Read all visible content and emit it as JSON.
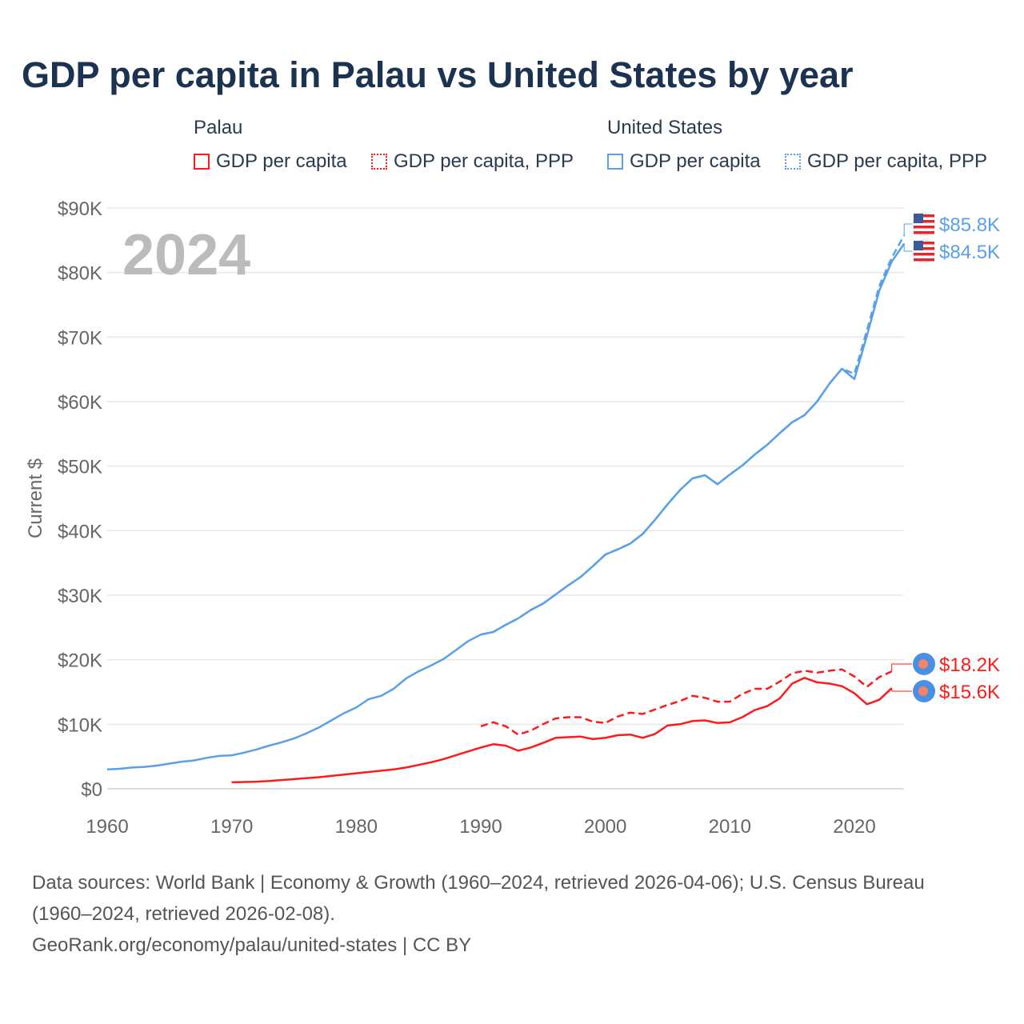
{
  "title": "GDP per capita in Palau vs United States by year",
  "legend": {
    "palau": "Palau",
    "us": "United States",
    "gdp": "GDP per capita",
    "ppp": "GDP per capita, PPP"
  },
  "year_watermark": "2024",
  "sources": {
    "line1": "Data sources: World Bank | Economy & Growth (1960–2024, retrieved 2026-04-06); U.S. Census Bureau",
    "line2": "(1960–2024, retrieved 2026-02-08).",
    "line3": "GeoRank.org/economy/palau/united-states | CC BY"
  },
  "colors": {
    "palau": "#ff1a1a",
    "us": "#5aa0e8"
  },
  "chart_data": {
    "type": "line",
    "title": "GDP per capita in Palau vs United States by year",
    "xlabel": "",
    "ylabel": "Current $",
    "xlim": [
      1960,
      2024
    ],
    "ylim": [
      0,
      90000
    ],
    "x_ticks": [
      "1960",
      "1970",
      "1980",
      "1990",
      "2000",
      "2010",
      "2020"
    ],
    "y_ticks": [
      "$0",
      "$10K",
      "$20K",
      "$30K",
      "$40K",
      "$50K",
      "$60K",
      "$70K",
      "$80K",
      "$90K"
    ],
    "grid": true,
    "series": [
      {
        "name": "United States GDP per capita",
        "color": "#5aa0e8",
        "dash": false,
        "start": 1960,
        "end_label": "$84.5K",
        "values": [
          3.0,
          3.1,
          3.3,
          3.4,
          3.6,
          3.9,
          4.2,
          4.4,
          4.8,
          5.1,
          5.2,
          5.6,
          6.1,
          6.7,
          7.2,
          7.8,
          8.6,
          9.5,
          10.6,
          11.7,
          12.6,
          13.9,
          14.4,
          15.5,
          17.1,
          18.2,
          19.1,
          20.1,
          21.5,
          22.9,
          23.9,
          24.3,
          25.4,
          26.4,
          27.7,
          28.7,
          30.1,
          31.5,
          32.8,
          34.5,
          36.3,
          37.1,
          38.0,
          39.5,
          41.7,
          44.1,
          46.3,
          48.1,
          48.6,
          47.2,
          48.7,
          50.1,
          51.8,
          53.3,
          55.1,
          56.8,
          57.9,
          60.0,
          62.8,
          65.1,
          63.5,
          70.2,
          77.2,
          81.7,
          84.5
        ]
      },
      {
        "name": "United States GDP per capita, PPP",
        "color": "#5aa0e8",
        "dash": true,
        "start": 1990,
        "end_label": "$85.8K",
        "values": [
          23.9,
          24.3,
          25.4,
          26.4,
          27.7,
          28.7,
          30.1,
          31.5,
          32.8,
          34.5,
          36.3,
          37.1,
          38.0,
          39.5,
          41.7,
          44.1,
          46.3,
          48.1,
          48.6,
          47.2,
          48.7,
          50.1,
          51.8,
          53.3,
          55.1,
          56.8,
          57.9,
          60.0,
          62.8,
          65.1,
          64.3,
          71.0,
          77.9,
          82.3,
          85.8
        ]
      },
      {
        "name": "Palau GDP per capita",
        "color": "#ff1a1a",
        "dash": false,
        "start": 1970,
        "end_label": "$15.6K",
        "values": [
          1.0,
          1.05,
          1.1,
          1.2,
          1.35,
          1.5,
          1.65,
          1.8,
          2.0,
          2.2,
          2.4,
          2.6,
          2.8,
          3.0,
          3.3,
          3.7,
          4.1,
          4.6,
          5.2,
          5.8,
          6.4,
          6.9,
          6.7,
          5.9,
          6.4,
          7.1,
          7.9,
          8.0,
          8.1,
          7.7,
          7.9,
          8.3,
          8.4,
          7.9,
          8.5,
          9.8,
          10.0,
          10.5,
          10.6,
          10.2,
          10.3,
          11.1,
          12.2,
          12.8,
          14.0,
          16.3,
          17.2,
          16.5,
          16.3,
          15.9,
          14.8,
          13.1,
          13.8,
          15.6
        ]
      },
      {
        "name": "Palau GDP per capita, PPP",
        "color": "#ff1a1a",
        "dash": true,
        "start": 1990,
        "end_label": "$18.2K",
        "values": [
          9.7,
          10.3,
          9.7,
          8.4,
          9.0,
          10.0,
          10.9,
          11.1,
          11.1,
          10.4,
          10.2,
          11.2,
          11.8,
          11.6,
          12.3,
          13.0,
          13.6,
          14.4,
          14.1,
          13.5,
          13.5,
          14.7,
          15.5,
          15.5,
          16.6,
          17.9,
          18.3,
          18.0,
          18.3,
          18.5,
          17.4,
          15.8,
          17.3,
          18.2
        ]
      }
    ]
  }
}
